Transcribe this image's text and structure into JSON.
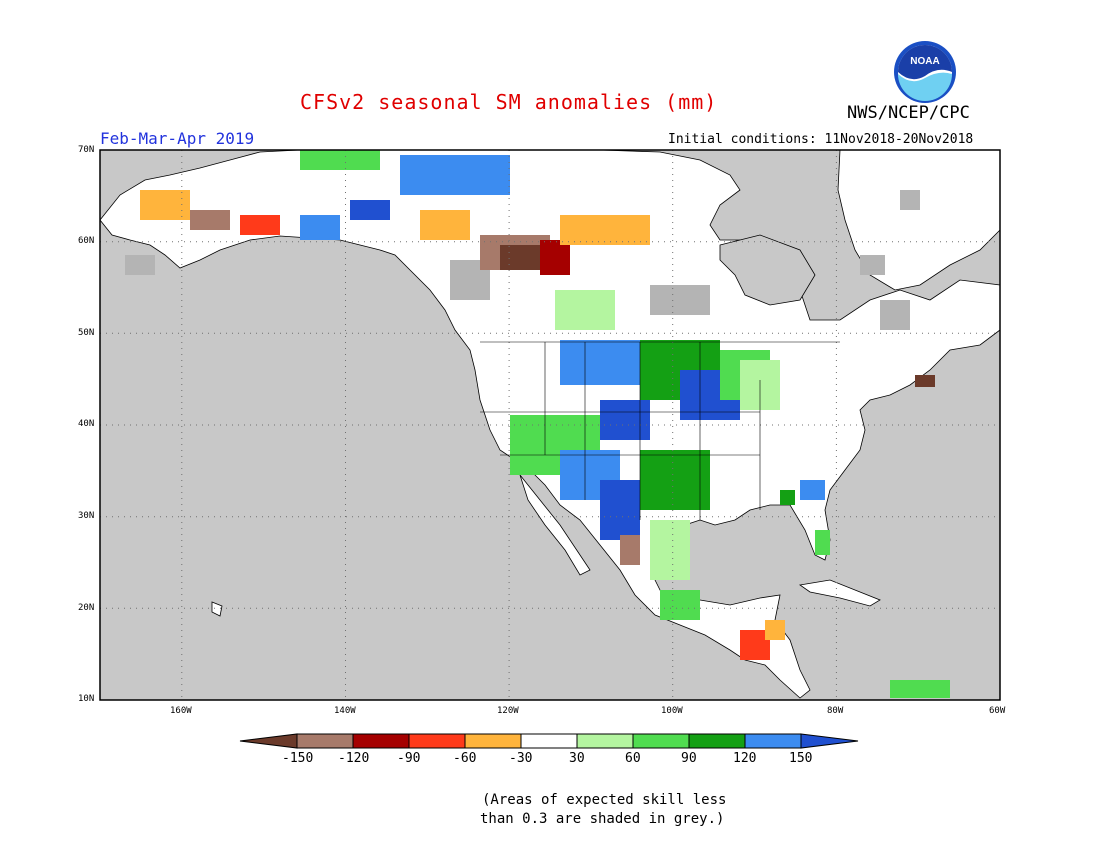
{
  "title": "CFSv2 seasonal SM anomalies (mm)",
  "agency": "NWS/NCEP/CPC",
  "logo_text": "NOAA",
  "season": "Feb-Mar-Apr 2019",
  "initial_conditions": "Initial conditions: 11Nov2018-20Nov2018",
  "lat_labels": [
    "70N",
    "60N",
    "50N",
    "40N",
    "30N",
    "20N",
    "10N"
  ],
  "lon_labels": [
    "160W",
    "140W",
    "120W",
    "100W",
    "80W",
    "60W"
  ],
  "legend": {
    "labels": [
      "-150",
      "-120",
      "-90",
      "-60",
      "-30",
      "30",
      "60",
      "90",
      "120",
      "150"
    ],
    "colors": [
      "#6b3a2a",
      "#a77a6a",
      "#a50000",
      "#ff3a1a",
      "#ffb43c",
      "#ffffff",
      "#b4f5a0",
      "#50dc50",
      "#14a014",
      "#3c8cf0",
      "#2050d0"
    ]
  },
  "note_line1": "(Areas of expected skill less",
  "note_line2": "than 0.3 are shaded in grey.)",
  "colors": {
    "ocean": "#c8c8c8",
    "land": "#ffffff",
    "skill_grey": "#b4b4b4"
  }
}
